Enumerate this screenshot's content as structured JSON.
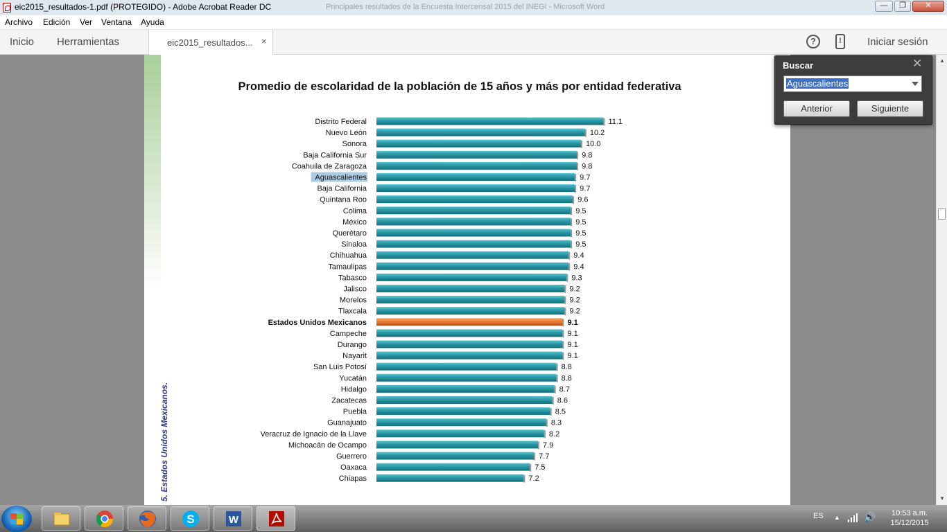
{
  "window": {
    "title": "eic2015_resultados-1.pdf (PROTEGIDO) - Adobe Acrobat Reader DC",
    "background_title": "Principales resultados de la Encuesta Intercensal 2015 del INEGI - Microsoft Word"
  },
  "menu": {
    "items": [
      "Archivo",
      "Edición",
      "Ver",
      "Ventana",
      "Ayuda"
    ]
  },
  "toolbar": {
    "home": "Inicio",
    "tools": "Herramientas",
    "tab_label": "eic2015_resultados...",
    "tab_close": "×",
    "help_glyph": "?",
    "mobile_glyph": "!",
    "sign_in": "Iniciar sesión"
  },
  "find": {
    "title": "Buscar",
    "close_glyph": "✕",
    "query": "Aguascalientes",
    "prev": "Anterior",
    "next": "Siguiente"
  },
  "document": {
    "side_caption": "5. Estados Unidos Mexicanos."
  },
  "colors": {
    "bar": "#2a98a6",
    "bar_national": "#ea7a2f",
    "highlight": "#a9cbe6"
  },
  "chart_data": {
    "type": "bar",
    "orientation": "horizontal",
    "title": "Promedio de escolaridad de la población de 15 años y más por entidad federativa",
    "xlabel": "",
    "ylabel": "",
    "xlim": [
      0,
      12
    ],
    "grid": false,
    "categories": [
      "Distrito Federal",
      "Nuevo León",
      "Sonora",
      "Baja California Sur",
      "Coahuila de Zaragoza",
      "Aguascalientes",
      "Baja California",
      "Quintana Roo",
      "Colima",
      "México",
      "Querétaro",
      "Sinaloa",
      "Chihuahua",
      "Tamaulipas",
      "Tabasco",
      "Jalisco",
      "Morelos",
      "Tlaxcala",
      "Estados Unidos Mexicanos",
      "Campeche",
      "Durango",
      "Nayarit",
      "San Luis Potosí",
      "Yucatán",
      "Hidalgo",
      "Zacatecas",
      "Puebla",
      "Guanajuato",
      "Veracruz de Ignacio de la Llave",
      "Michoacán de Ocampo",
      "Guerrero",
      "Oaxaca",
      "Chiapas"
    ],
    "values": [
      11.1,
      10.2,
      10.0,
      9.8,
      9.8,
      9.7,
      9.7,
      9.6,
      9.5,
      9.5,
      9.5,
      9.5,
      9.4,
      9.4,
      9.3,
      9.2,
      9.2,
      9.2,
      9.1,
      9.1,
      9.1,
      9.1,
      8.8,
      8.8,
      8.7,
      8.6,
      8.5,
      8.3,
      8.2,
      7.9,
      7.7,
      7.5,
      7.2
    ],
    "labels": [
      "11.1",
      "10.2",
      "10.0",
      "9.8",
      "9.8",
      "9.7",
      "9.7",
      "9.6",
      "9.5",
      "9.5",
      "9.5",
      "9.5",
      "9.4",
      "9.4",
      "9.3",
      "9.2",
      "9.2",
      "9.2",
      "9.1",
      "9.1",
      "9.1",
      "9.1",
      "8.8",
      "8.8",
      "8.7",
      "8.6",
      "8.5",
      "8.3",
      "8.2",
      "7.9",
      "7.7",
      "7.5",
      "7.2"
    ],
    "highlight_category": "Estados Unidos Mexicanos",
    "search_match_category": "Aguascalientes"
  },
  "taskbar": {
    "language": "ES",
    "time": "10:53 a.m.",
    "date": "15/12/2015",
    "tray_up_glyph": "▲",
    "volume_glyph": "🔊"
  }
}
